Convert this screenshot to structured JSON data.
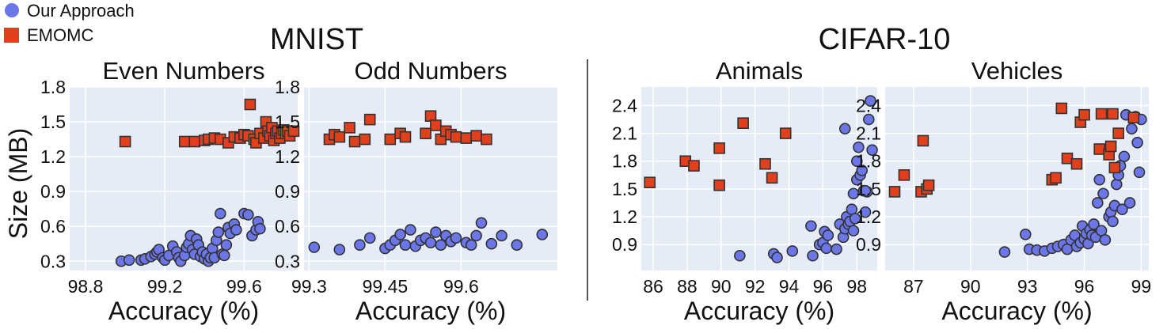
{
  "legend": {
    "items": [
      {
        "label": "Our Approach",
        "marker": "circle",
        "color": "#6b76e8"
      },
      {
        "label": "EMOMC",
        "marker": "square",
        "color": "#e2401c"
      }
    ],
    "placement": "top-left"
  },
  "groups": [
    {
      "title": "MNIST"
    },
    {
      "title": "CIFAR-10"
    }
  ],
  "shared": {
    "ylabel": "Size (MB)",
    "xlabel": "Accuracy (%)"
  },
  "colors": {
    "plot_bg": "#e5ecf6",
    "grid": "#ffffff",
    "circle_fill": "#6b76e8",
    "square_fill": "#e2401c",
    "marker_stroke": "#333333",
    "separator": "#555555"
  },
  "chart_data": [
    {
      "type": "scatter",
      "title": "Even Numbers",
      "xlabel": "Accuracy (%)",
      "ylabel": "Size (MB)",
      "xlim": [
        98.72,
        99.87
      ],
      "ylim": [
        0.22,
        1.8
      ],
      "xticks": [
        "98.8",
        "99.2",
        "99.6"
      ],
      "yticks": [
        "0.3",
        "0.6",
        "0.9",
        "1.2",
        "1.5",
        "1.8"
      ],
      "grid": true,
      "series": [
        {
          "name": "Our Approach",
          "marker": "circle",
          "points": [
            [
              98.98,
              0.3
            ],
            [
              99.02,
              0.31
            ],
            [
              99.08,
              0.31
            ],
            [
              99.1,
              0.32
            ],
            [
              99.13,
              0.34
            ],
            [
              99.15,
              0.36
            ],
            [
              99.16,
              0.38
            ],
            [
              99.17,
              0.4
            ],
            [
              99.19,
              0.33
            ],
            [
              99.2,
              0.31
            ],
            [
              99.22,
              0.35
            ],
            [
              99.24,
              0.43
            ],
            [
              99.26,
              0.38
            ],
            [
              99.27,
              0.33
            ],
            [
              99.28,
              0.3
            ],
            [
              99.3,
              0.35
            ],
            [
              99.31,
              0.42
            ],
            [
              99.32,
              0.45
            ],
            [
              99.33,
              0.52
            ],
            [
              99.34,
              0.4
            ],
            [
              99.35,
              0.36
            ],
            [
              99.36,
              0.49
            ],
            [
              99.37,
              0.44
            ],
            [
              99.38,
              0.34
            ],
            [
              99.39,
              0.38
            ],
            [
              99.4,
              0.32
            ],
            [
              99.41,
              0.36
            ],
            [
              99.42,
              0.3
            ],
            [
              99.43,
              0.33
            ],
            [
              99.44,
              0.41
            ],
            [
              99.45,
              0.33
            ],
            [
              99.46,
              0.48
            ],
            [
              99.47,
              0.55
            ],
            [
              99.48,
              0.71
            ],
            [
              99.49,
              0.36
            ],
            [
              99.5,
              0.35
            ],
            [
              99.51,
              0.44
            ],
            [
              99.52,
              0.59
            ],
            [
              99.53,
              0.54
            ],
            [
              99.55,
              0.62
            ],
            [
              99.56,
              0.57
            ],
            [
              99.6,
              0.71
            ],
            [
              99.62,
              0.7
            ],
            [
              99.64,
              0.52
            ],
            [
              99.66,
              0.57
            ],
            [
              99.67,
              0.64
            ],
            [
              99.68,
              0.58
            ]
          ]
        },
        {
          "name": "EMOMC",
          "marker": "square",
          "points": [
            [
              99.0,
              1.33
            ],
            [
              99.3,
              1.33
            ],
            [
              99.35,
              1.33
            ],
            [
              99.4,
              1.34
            ],
            [
              99.42,
              1.35
            ],
            [
              99.45,
              1.36
            ],
            [
              99.48,
              1.35
            ],
            [
              99.52,
              1.32
            ],
            [
              99.55,
              1.37
            ],
            [
              99.58,
              1.36
            ],
            [
              99.6,
              1.39
            ],
            [
              99.62,
              1.38
            ],
            [
              99.63,
              1.65
            ],
            [
              99.65,
              1.35
            ],
            [
              99.66,
              1.32
            ],
            [
              99.68,
              1.4
            ],
            [
              99.7,
              1.36
            ],
            [
              99.71,
              1.5
            ],
            [
              99.72,
              1.42
            ],
            [
              99.73,
              1.38
            ],
            [
              99.74,
              1.45
            ],
            [
              99.75,
              1.34
            ],
            [
              99.76,
              1.4
            ],
            [
              99.77,
              1.42
            ],
            [
              99.78,
              1.36
            ],
            [
              99.79,
              1.4
            ],
            [
              99.8,
              1.43
            ],
            [
              99.81,
              1.4
            ],
            [
              99.82,
              1.42
            ],
            [
              99.83,
              1.38
            ],
            [
              99.85,
              1.42
            ]
          ]
        }
      ]
    },
    {
      "type": "scatter",
      "title": "Odd Numbers",
      "xlabel": "Accuracy (%)",
      "ylabel": "",
      "xlim": [
        99.29,
        99.79
      ],
      "ylim": [
        0.22,
        1.8
      ],
      "xticks": [
        "99.3",
        "99.45",
        "99.6"
      ],
      "yticks": [
        "0.3",
        "0.6",
        "0.9",
        "1.2",
        "1.5",
        "1.8"
      ],
      "grid": true,
      "series": [
        {
          "name": "Our Approach",
          "marker": "circle",
          "points": [
            [
              99.31,
              0.42
            ],
            [
              99.36,
              0.4
            ],
            [
              99.4,
              0.44
            ],
            [
              99.42,
              0.5
            ],
            [
              99.45,
              0.41
            ],
            [
              99.46,
              0.44
            ],
            [
              99.47,
              0.48
            ],
            [
              99.48,
              0.53
            ],
            [
              99.49,
              0.44
            ],
            [
              99.5,
              0.57
            ],
            [
              99.51,
              0.43
            ],
            [
              99.52,
              0.48
            ],
            [
              99.53,
              0.5
            ],
            [
              99.54,
              0.46
            ],
            [
              99.55,
              0.55
            ],
            [
              99.56,
              0.44
            ],
            [
              99.57,
              0.52
            ],
            [
              99.58,
              0.47
            ],
            [
              99.59,
              0.5
            ],
            [
              99.61,
              0.46
            ],
            [
              99.62,
              0.44
            ],
            [
              99.63,
              0.52
            ],
            [
              99.64,
              0.63
            ],
            [
              99.66,
              0.45
            ],
            [
              99.68,
              0.52
            ],
            [
              99.71,
              0.44
            ],
            [
              99.76,
              0.53
            ]
          ]
        },
        {
          "name": "EMOMC",
          "marker": "square",
          "points": [
            [
              99.34,
              1.35
            ],
            [
              99.35,
              1.39
            ],
            [
              99.36,
              1.37
            ],
            [
              99.38,
              1.45
            ],
            [
              99.39,
              1.33
            ],
            [
              99.41,
              1.35
            ],
            [
              99.42,
              1.52
            ],
            [
              99.46,
              1.35
            ],
            [
              99.48,
              1.4
            ],
            [
              99.49,
              1.37
            ],
            [
              99.53,
              1.4
            ],
            [
              99.54,
              1.55
            ],
            [
              99.55,
              1.47
            ],
            [
              99.56,
              1.35
            ],
            [
              99.57,
              1.42
            ],
            [
              99.58,
              1.39
            ],
            [
              99.59,
              1.37
            ],
            [
              99.61,
              1.36
            ],
            [
              99.63,
              1.38
            ],
            [
              99.65,
              1.35
            ]
          ]
        }
      ]
    },
    {
      "type": "scatter",
      "title": "Animals",
      "xlabel": "Accuracy (%)",
      "ylabel": "",
      "xlim": [
        85.3,
        99.2
      ],
      "ylim": [
        0.62,
        2.6
      ],
      "xticks": [
        "86",
        "88",
        "90",
        "92",
        "94",
        "96",
        "98"
      ],
      "yticks": [
        "0.9",
        "1.2",
        "1.5",
        "1.8",
        "2.1",
        "2.4"
      ],
      "grid": true,
      "series": [
        {
          "name": "Our Approach",
          "marker": "circle",
          "points": [
            [
              91.1,
              0.78
            ],
            [
              93.1,
              0.8
            ],
            [
              93.3,
              0.76
            ],
            [
              94.2,
              0.83
            ],
            [
              95.4,
              0.78
            ],
            [
              95.8,
              0.9
            ],
            [
              96.0,
              0.92
            ],
            [
              96.1,
              1.04
            ],
            [
              96.2,
              0.86
            ],
            [
              96.8,
              0.85
            ],
            [
              97.0,
              1.12
            ],
            [
              97.2,
              0.98
            ],
            [
              97.3,
              1.07
            ],
            [
              97.4,
              1.2
            ],
            [
              97.5,
              1.12
            ],
            [
              97.6,
              1.15
            ],
            [
              97.7,
              1.28
            ],
            [
              97.8,
              1.45
            ],
            [
              97.8,
              1.05
            ],
            [
              97.9,
              1.18
            ],
            [
              98.0,
              1.6
            ],
            [
              98.0,
              1.8
            ],
            [
              98.1,
              1.95
            ],
            [
              98.2,
              1.65
            ],
            [
              98.3,
              1.7
            ],
            [
              98.4,
              1.48
            ],
            [
              98.5,
              1.25
            ],
            [
              98.6,
              1.47
            ],
            [
              98.7,
              2.25
            ],
            [
              98.8,
              2.45
            ],
            [
              98.9,
              1.92
            ],
            [
              97.3,
              2.15
            ],
            [
              95.3,
              1.1
            ],
            [
              96.3,
              1.0
            ],
            [
              98.5,
              1.48
            ]
          ]
        },
        {
          "name": "EMOMC",
          "marker": "square",
          "points": [
            [
              85.8,
              1.57
            ],
            [
              87.9,
              1.8
            ],
            [
              88.4,
              1.75
            ],
            [
              89.9,
              1.94
            ],
            [
              89.9,
              1.54
            ],
            [
              91.3,
              2.21
            ],
            [
              92.6,
              1.77
            ],
            [
              93.0,
              1.62
            ],
            [
              93.8,
              2.1
            ]
          ]
        }
      ]
    },
    {
      "type": "scatter",
      "title": "Vehicles",
      "xlabel": "Accuracy (%)",
      "ylabel": "",
      "xlim": [
        85.5,
        99.4
      ],
      "ylim": [
        0.62,
        2.6
      ],
      "xticks": [
        "87",
        "90",
        "93",
        "96",
        "99"
      ],
      "yticks": [
        "0.9",
        "1.2",
        "1.5",
        "1.8",
        "2.1",
        "2.4"
      ],
      "grid": true,
      "series": [
        {
          "name": "Our Approach",
          "marker": "circle",
          "points": [
            [
              91.8,
              0.82
            ],
            [
              92.9,
              1.01
            ],
            [
              93.1,
              0.85
            ],
            [
              93.5,
              0.84
            ],
            [
              93.9,
              0.83
            ],
            [
              94.3,
              0.86
            ],
            [
              94.6,
              0.88
            ],
            [
              94.9,
              0.9
            ],
            [
              95.1,
              0.85
            ],
            [
              95.3,
              0.95
            ],
            [
              95.5,
              1.0
            ],
            [
              95.6,
              0.88
            ],
            [
              95.8,
              0.92
            ],
            [
              95.9,
              1.1
            ],
            [
              96.0,
              0.96
            ],
            [
              96.1,
              1.02
            ],
            [
              96.2,
              0.91
            ],
            [
              96.3,
              1.06
            ],
            [
              96.4,
              1.0
            ],
            [
              96.5,
              1.12
            ],
            [
              96.6,
              0.98
            ],
            [
              96.7,
              1.35
            ],
            [
              96.9,
              1.05
            ],
            [
              97.0,
              1.45
            ],
            [
              97.1,
              0.95
            ],
            [
              97.3,
              1.2
            ],
            [
              97.4,
              1.25
            ],
            [
              97.5,
              1.15
            ],
            [
              97.6,
              1.32
            ],
            [
              97.7,
              1.55
            ],
            [
              97.8,
              1.65
            ],
            [
              98.0,
              1.28
            ],
            [
              98.1,
              1.85
            ],
            [
              98.2,
              2.3
            ],
            [
              98.4,
              1.35
            ],
            [
              98.5,
              2.15
            ],
            [
              98.7,
              2.28
            ],
            [
              98.8,
              2.0
            ],
            [
              98.9,
              1.68
            ],
            [
              99.0,
              2.25
            ],
            [
              96.8,
              1.6
            ],
            [
              97.9,
              1.75
            ]
          ]
        },
        {
          "name": "EMOMC",
          "marker": "square",
          "points": [
            [
              86.0,
              1.47
            ],
            [
              86.5,
              1.65
            ],
            [
              87.4,
              1.47
            ],
            [
              87.5,
              2.02
            ],
            [
              87.7,
              1.5
            ],
            [
              87.8,
              1.54
            ],
            [
              94.3,
              1.6
            ],
            [
              94.5,
              1.62
            ],
            [
              94.8,
              2.37
            ],
            [
              95.1,
              1.83
            ],
            [
              95.6,
              1.77
            ],
            [
              95.8,
              2.22
            ],
            [
              96.0,
              2.3
            ],
            [
              96.8,
              1.93
            ],
            [
              96.9,
              2.31
            ],
            [
              97.3,
              1.87
            ],
            [
              97.4,
              1.96
            ],
            [
              97.5,
              2.31
            ],
            [
              97.6,
              1.73
            ],
            [
              97.8,
              2.1
            ],
            [
              98.6,
              2.27
            ]
          ]
        }
      ]
    }
  ]
}
